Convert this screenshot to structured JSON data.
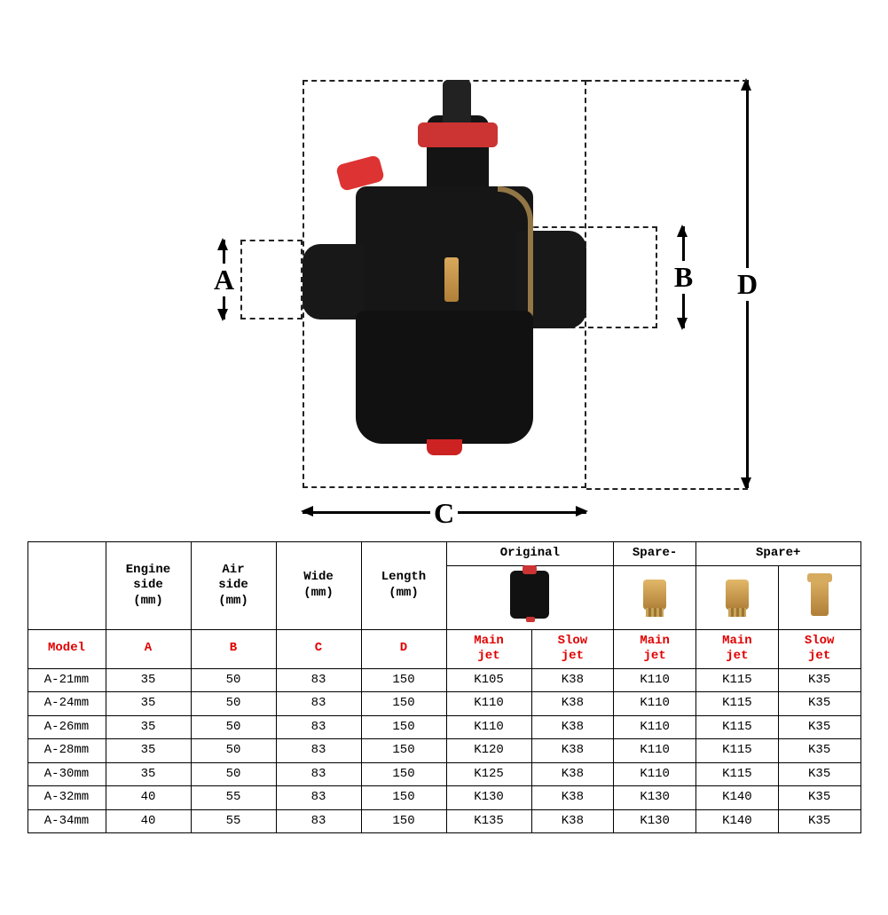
{
  "diagram": {
    "labels": {
      "A": "A",
      "B": "B",
      "C": "C",
      "D": "D"
    }
  },
  "table": {
    "group_headers": {
      "original": "Original",
      "spare_minus": "Spare-",
      "spare_plus": "Spare+"
    },
    "dim_headers": {
      "engine_side": "Engine\nside\n(mm)",
      "air_side": "Air\nside\n(mm)",
      "wide": "Wide\n(mm)",
      "length": "Length\n(mm)"
    },
    "red_headers": {
      "model": "Model",
      "A": "A",
      "B": "B",
      "C": "C",
      "D": "D",
      "main_jet": "Main\njet",
      "slow_jet": "Slow\njet"
    },
    "rows": [
      {
        "model": "A-21mm",
        "A": "35",
        "B": "50",
        "C": "83",
        "D": "150",
        "orig_main": "K105",
        "orig_slow": "K38",
        "sm_main": "K110",
        "sp_main": "K115",
        "sp_slow": "K35"
      },
      {
        "model": "A-24mm",
        "A": "35",
        "B": "50",
        "C": "83",
        "D": "150",
        "orig_main": "K110",
        "orig_slow": "K38",
        "sm_main": "K110",
        "sp_main": "K115",
        "sp_slow": "K35"
      },
      {
        "model": "A-26mm",
        "A": "35",
        "B": "50",
        "C": "83",
        "D": "150",
        "orig_main": "K110",
        "orig_slow": "K38",
        "sm_main": "K110",
        "sp_main": "K115",
        "sp_slow": "K35"
      },
      {
        "model": "A-28mm",
        "A": "35",
        "B": "50",
        "C": "83",
        "D": "150",
        "orig_main": "K120",
        "orig_slow": "K38",
        "sm_main": "K110",
        "sp_main": "K115",
        "sp_slow": "K35"
      },
      {
        "model": "A-30mm",
        "A": "35",
        "B": "50",
        "C": "83",
        "D": "150",
        "orig_main": "K125",
        "orig_slow": "K38",
        "sm_main": "K110",
        "sp_main": "K115",
        "sp_slow": "K35"
      },
      {
        "model": "A-32mm",
        "A": "40",
        "B": "55",
        "C": "83",
        "D": "150",
        "orig_main": "K130",
        "orig_slow": "K38",
        "sm_main": "K130",
        "sp_main": "K140",
        "sp_slow": "K35"
      },
      {
        "model": "A-34mm",
        "A": "40",
        "B": "55",
        "C": "83",
        "D": "150",
        "orig_main": "K135",
        "orig_slow": "K38",
        "sm_main": "K130",
        "sp_main": "K140",
        "sp_slow": "K35"
      }
    ]
  },
  "style": {
    "text_color": "#000000",
    "red_color": "#e00000",
    "border_color": "#000000",
    "carb_body": "#141414",
    "carb_accent": "#cc3333",
    "brass": "#c99a4e",
    "background": "#ffffff",
    "font_mono": "Courier New",
    "font_serif": "Times New Roman",
    "dim_label_fontsize_pt": 24,
    "table_fontsize_pt": 11
  }
}
